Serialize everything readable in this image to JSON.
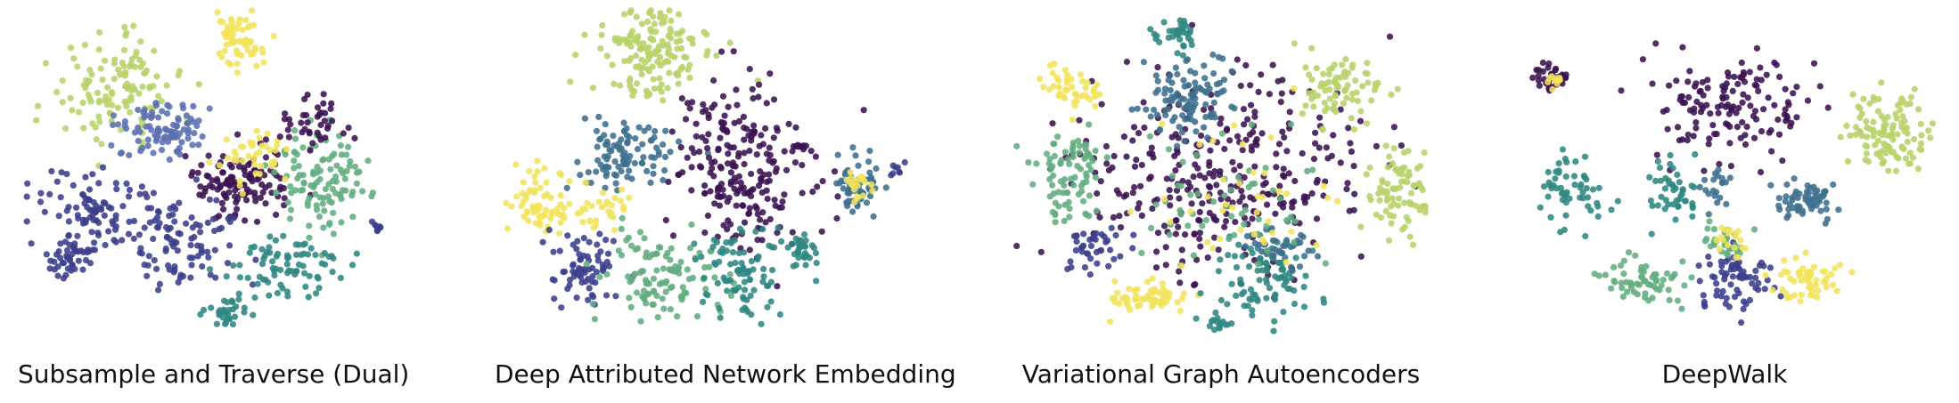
{
  "palette": {
    "dark_purple": "#3b1252",
    "indigo": "#3b3f8c",
    "blue": "#5b6fb0",
    "steel": "#3e6f8e",
    "teal": "#2f8782",
    "green": "#62ad7f",
    "lime": "#b7d36a",
    "yellow": "#f3e45c"
  },
  "chart_data": [
    {
      "type": "scatter",
      "title": "Subsample and Traverse (Dual)",
      "clusters": [
        {
          "color": "lime",
          "cx": 0.25,
          "cy": 0.25,
          "rx": 0.17,
          "ry": 0.15,
          "n": 120
        },
        {
          "color": "yellow",
          "cx": 0.58,
          "cy": 0.1,
          "rx": 0.09,
          "ry": 0.1,
          "n": 60
        },
        {
          "color": "blue",
          "cx": 0.38,
          "cy": 0.37,
          "rx": 0.12,
          "ry": 0.09,
          "n": 90
        },
        {
          "color": "dark_purple",
          "cx": 0.58,
          "cy": 0.53,
          "rx": 0.12,
          "ry": 0.1,
          "n": 120
        },
        {
          "color": "indigo",
          "cx": 0.2,
          "cy": 0.62,
          "rx": 0.16,
          "ry": 0.12,
          "n": 100
        },
        {
          "color": "indigo",
          "cx": 0.42,
          "cy": 0.7,
          "rx": 0.16,
          "ry": 0.15,
          "n": 90
        },
        {
          "color": "green",
          "cx": 0.8,
          "cy": 0.52,
          "rx": 0.13,
          "ry": 0.16,
          "n": 110
        },
        {
          "color": "teal",
          "cx": 0.7,
          "cy": 0.78,
          "rx": 0.16,
          "ry": 0.08,
          "n": 80
        },
        {
          "color": "teal",
          "cx": 0.55,
          "cy": 0.92,
          "rx": 0.05,
          "ry": 0.05,
          "n": 30
        },
        {
          "color": "indigo",
          "cx": 0.12,
          "cy": 0.75,
          "rx": 0.07,
          "ry": 0.06,
          "n": 40
        },
        {
          "color": "yellow",
          "cx": 0.62,
          "cy": 0.45,
          "rx": 0.1,
          "ry": 0.08,
          "n": 40
        },
        {
          "color": "dark_purple",
          "cx": 0.78,
          "cy": 0.35,
          "rx": 0.1,
          "ry": 0.08,
          "n": 40
        },
        {
          "color": "indigo",
          "cx": 0.95,
          "cy": 0.66,
          "rx": 0.02,
          "ry": 0.02,
          "n": 8
        }
      ]
    },
    {
      "type": "scatter",
      "title": "Deep Attributed Network Embedding",
      "clusters": [
        {
          "color": "lime",
          "cx": 0.38,
          "cy": 0.14,
          "rx": 0.15,
          "ry": 0.12,
          "n": 150
        },
        {
          "color": "steel",
          "cx": 0.3,
          "cy": 0.44,
          "rx": 0.12,
          "ry": 0.13,
          "n": 100
        },
        {
          "color": "dark_purple",
          "cx": 0.58,
          "cy": 0.48,
          "rx": 0.16,
          "ry": 0.27,
          "n": 220
        },
        {
          "color": "yellow",
          "cx": 0.1,
          "cy": 0.58,
          "rx": 0.07,
          "ry": 0.1,
          "n": 70
        },
        {
          "color": "indigo",
          "cx": 0.2,
          "cy": 0.78,
          "rx": 0.08,
          "ry": 0.1,
          "n": 70
        },
        {
          "color": "green",
          "cx": 0.38,
          "cy": 0.8,
          "rx": 0.14,
          "ry": 0.14,
          "n": 110
        },
        {
          "color": "teal",
          "cx": 0.58,
          "cy": 0.8,
          "rx": 0.12,
          "ry": 0.12,
          "n": 90
        },
        {
          "color": "teal",
          "cx": 0.72,
          "cy": 0.73,
          "rx": 0.04,
          "ry": 0.05,
          "n": 30
        },
        {
          "color": "steel",
          "cx": 0.86,
          "cy": 0.53,
          "rx": 0.06,
          "ry": 0.09,
          "n": 55
        },
        {
          "color": "yellow",
          "cx": 0.86,
          "cy": 0.53,
          "rx": 0.03,
          "ry": 0.05,
          "n": 20
        },
        {
          "color": "dark_purple",
          "cx": 0.72,
          "cy": 0.42,
          "rx": 0.02,
          "ry": 0.02,
          "n": 10
        },
        {
          "color": "indigo",
          "cx": 0.96,
          "cy": 0.48,
          "rx": 0.02,
          "ry": 0.02,
          "n": 8
        },
        {
          "color": "yellow",
          "cx": 0.24,
          "cy": 0.62,
          "rx": 0.06,
          "ry": 0.07,
          "n": 30
        }
      ]
    },
    {
      "type": "scatter",
      "title": "Variational Graph Autoencoders",
      "clusters": [
        {
          "color": "dark_purple",
          "cx": 0.5,
          "cy": 0.5,
          "rx": 0.32,
          "ry": 0.32,
          "n": 320
        },
        {
          "color": "yellow",
          "cx": 0.14,
          "cy": 0.24,
          "rx": 0.08,
          "ry": 0.06,
          "n": 45
        },
        {
          "color": "steel",
          "cx": 0.42,
          "cy": 0.28,
          "rx": 0.12,
          "ry": 0.12,
          "n": 100
        },
        {
          "color": "teal",
          "cx": 0.4,
          "cy": 0.08,
          "rx": 0.06,
          "ry": 0.06,
          "n": 35
        },
        {
          "color": "lime",
          "cx": 0.78,
          "cy": 0.24,
          "rx": 0.1,
          "ry": 0.1,
          "n": 80
        },
        {
          "color": "lime",
          "cx": 0.92,
          "cy": 0.55,
          "rx": 0.07,
          "ry": 0.13,
          "n": 80
        },
        {
          "color": "green",
          "cx": 0.14,
          "cy": 0.5,
          "rx": 0.1,
          "ry": 0.12,
          "n": 80
        },
        {
          "color": "yellow",
          "cx": 0.32,
          "cy": 0.87,
          "rx": 0.1,
          "ry": 0.05,
          "n": 60
        },
        {
          "color": "teal",
          "cx": 0.6,
          "cy": 0.8,
          "rx": 0.12,
          "ry": 0.12,
          "n": 90
        },
        {
          "color": "indigo",
          "cx": 0.2,
          "cy": 0.72,
          "rx": 0.08,
          "ry": 0.08,
          "n": 40
        },
        {
          "color": "steel",
          "cx": 0.65,
          "cy": 0.72,
          "rx": 0.08,
          "ry": 0.06,
          "n": 40
        },
        {
          "color": "green",
          "cx": 0.5,
          "cy": 0.6,
          "rx": 0.25,
          "ry": 0.22,
          "n": 60
        },
        {
          "color": "yellow",
          "cx": 0.55,
          "cy": 0.55,
          "rx": 0.25,
          "ry": 0.25,
          "n": 40
        },
        {
          "color": "teal",
          "cx": 0.5,
          "cy": 0.95,
          "rx": 0.04,
          "ry": 0.03,
          "n": 15
        }
      ]
    },
    {
      "type": "scatter",
      "title": "DeepWalk",
      "clusters": [
        {
          "color": "dark_purple",
          "cx": 0.1,
          "cy": 0.22,
          "rx": 0.04,
          "ry": 0.04,
          "n": 40
        },
        {
          "color": "yellow",
          "cx": 0.1,
          "cy": 0.22,
          "rx": 0.02,
          "ry": 0.02,
          "n": 12
        },
        {
          "color": "dark_purple",
          "cx": 0.52,
          "cy": 0.3,
          "rx": 0.18,
          "ry": 0.17,
          "n": 140
        },
        {
          "color": "lime",
          "cx": 0.88,
          "cy": 0.38,
          "rx": 0.09,
          "ry": 0.12,
          "n": 110
        },
        {
          "color": "steel",
          "cx": 0.7,
          "cy": 0.58,
          "rx": 0.07,
          "ry": 0.06,
          "n": 60
        },
        {
          "color": "teal",
          "cx": 0.14,
          "cy": 0.55,
          "rx": 0.08,
          "ry": 0.1,
          "n": 55
        },
        {
          "color": "teal",
          "cx": 0.38,
          "cy": 0.55,
          "rx": 0.06,
          "ry": 0.1,
          "n": 45
        },
        {
          "color": "green",
          "cx": 0.32,
          "cy": 0.82,
          "rx": 0.09,
          "ry": 0.07,
          "n": 60
        },
        {
          "color": "indigo",
          "cx": 0.52,
          "cy": 0.82,
          "rx": 0.08,
          "ry": 0.1,
          "n": 70
        },
        {
          "color": "yellow",
          "cx": 0.7,
          "cy": 0.82,
          "rx": 0.08,
          "ry": 0.06,
          "n": 55
        },
        {
          "color": "green",
          "cx": 0.5,
          "cy": 0.7,
          "rx": 0.06,
          "ry": 0.05,
          "n": 30
        },
        {
          "color": "yellow",
          "cx": 0.52,
          "cy": 0.7,
          "rx": 0.04,
          "ry": 0.04,
          "n": 18
        },
        {
          "color": "steel",
          "cx": 0.48,
          "cy": 0.55,
          "rx": 0.04,
          "ry": 0.06,
          "n": 20
        }
      ]
    }
  ]
}
